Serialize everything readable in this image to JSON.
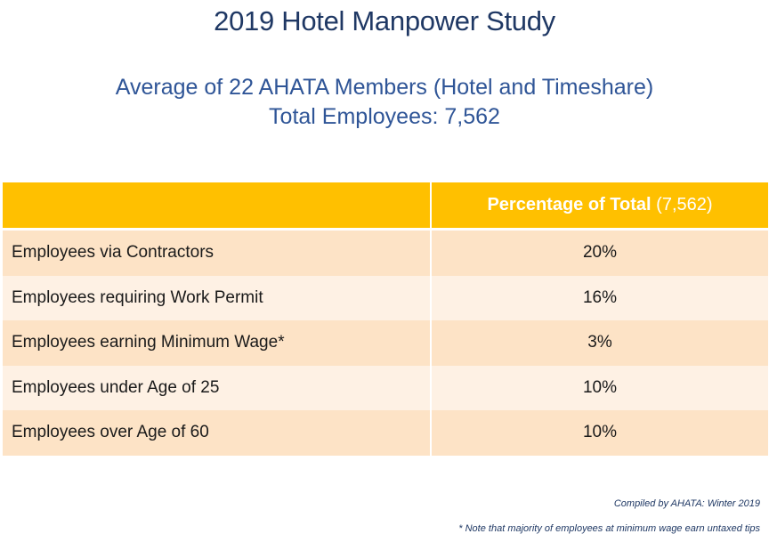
{
  "title": "2019 Hotel Manpower Study",
  "subtitle_line1": "Average of 22 AHATA Members (Hotel and Timeshare)",
  "subtitle_line2": "Total Employees: 7,562",
  "table": {
    "header_value_bold": "Percentage of Total",
    "header_value_rest": "(7,562)",
    "rows": [
      {
        "label": "Employees via Contractors",
        "value": "20%"
      },
      {
        "label": "Employees requiring Work Permit",
        "value": "16%"
      },
      {
        "label": "Employees earning Minimum Wage*",
        "value": "3%"
      },
      {
        "label": "Employees under Age of 25",
        "value": "10%"
      },
      {
        "label": "Employees over Age of 60",
        "value": "10%"
      }
    ]
  },
  "footer": {
    "compiled": "Compiled by AHATA:  Winter 2019",
    "note": "* Note that majority of employees at minimum wage earn untaxed tips"
  },
  "colors": {
    "header": "#ffc000",
    "row_dark": "#fde3c6",
    "row_light": "#fef1e4",
    "title": "#1f3864"
  }
}
